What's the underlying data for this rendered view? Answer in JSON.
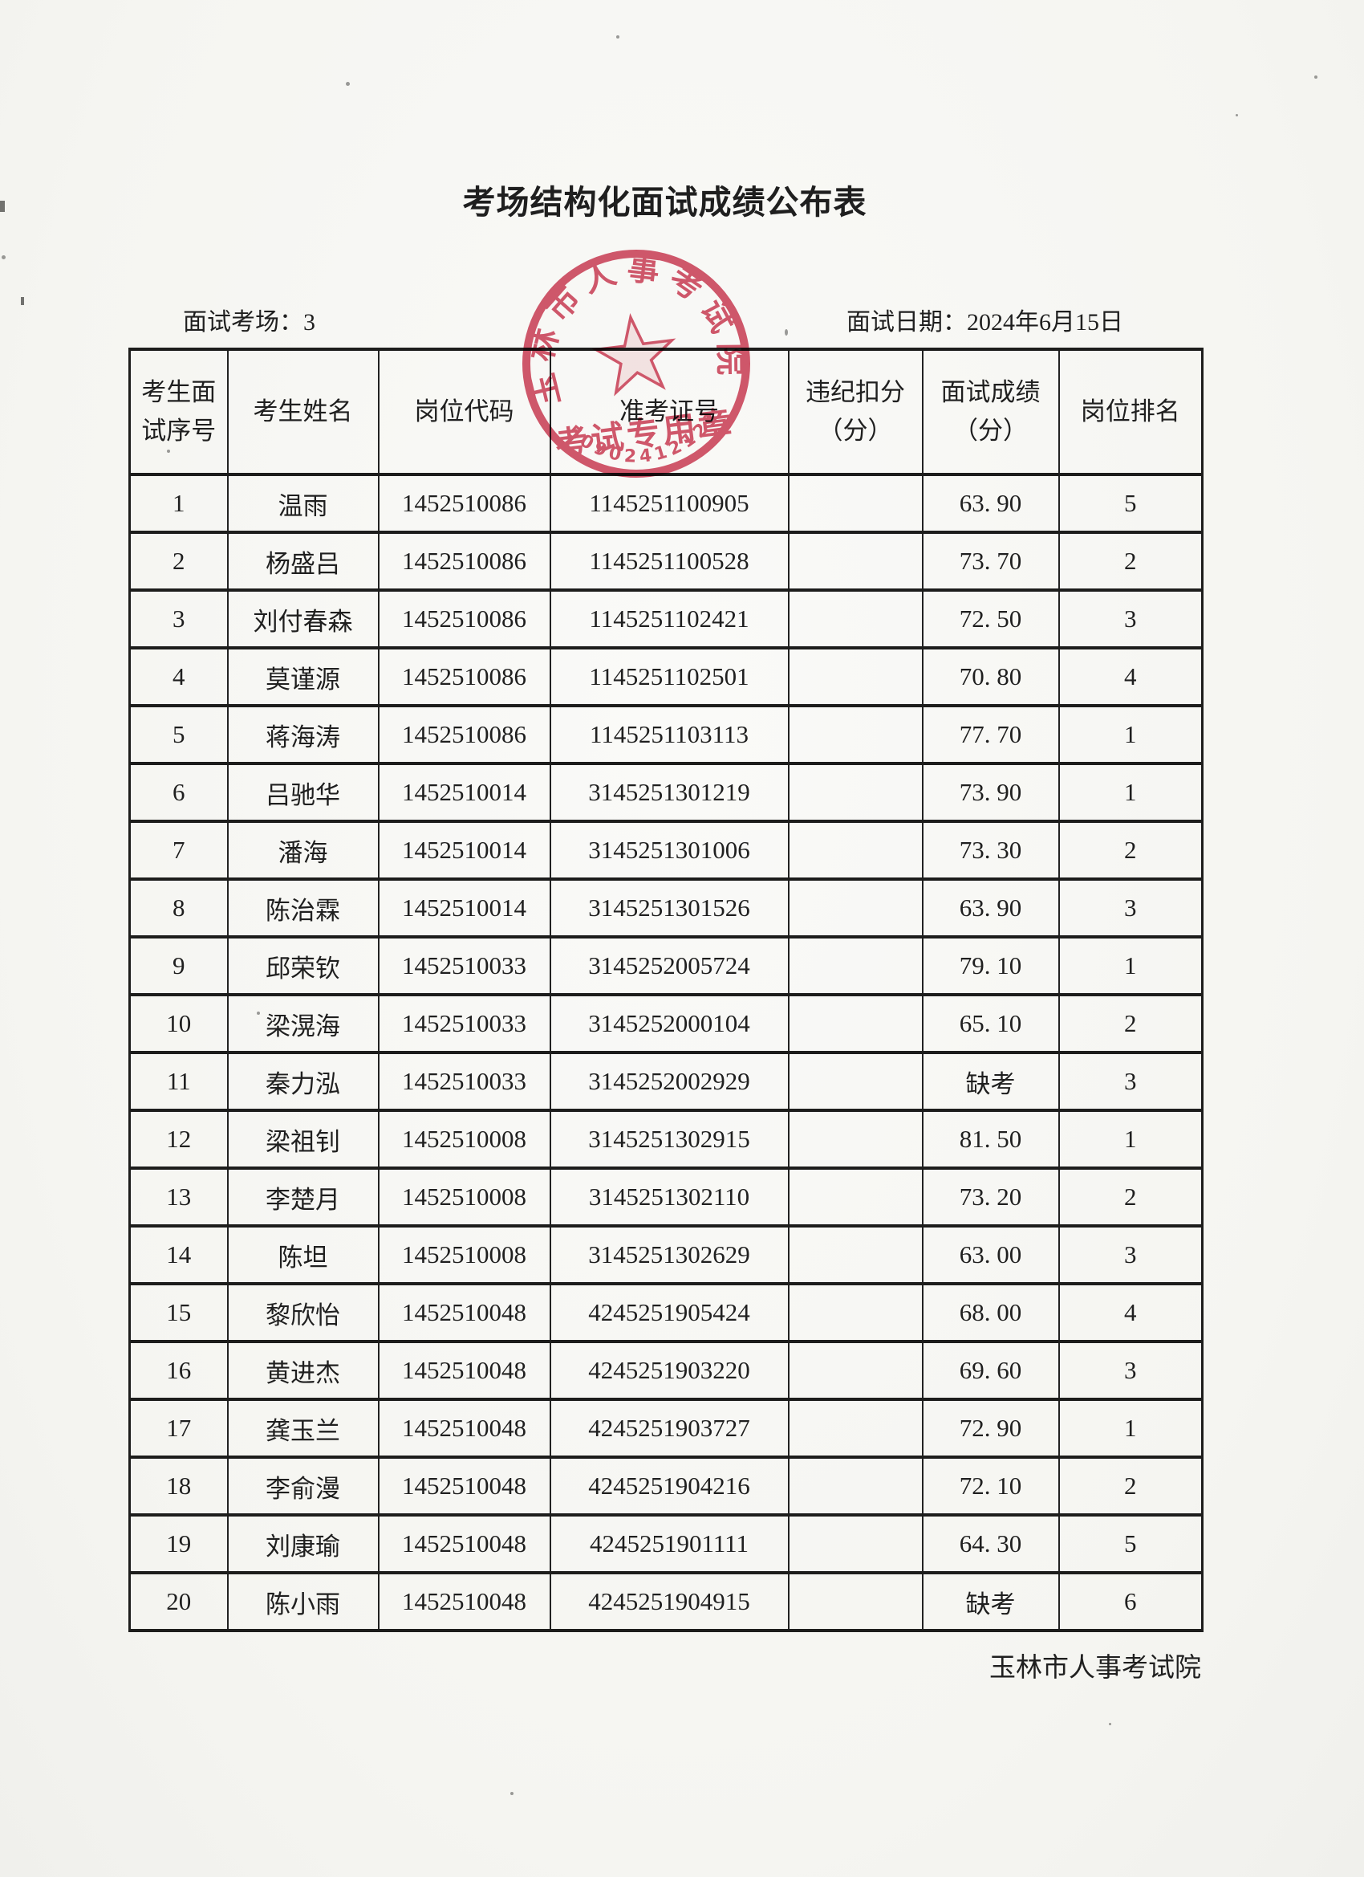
{
  "page": {
    "title": "考场结构化面试成绩公布表",
    "meta": {
      "room_label": "面试考场：3",
      "date_label": "面试日期：2024年6月15日"
    },
    "footer": "玉林市人事考试院"
  },
  "stamp": {
    "arc_text": "玉林市人事考试院",
    "bottom_text": "考试专用章",
    "serial": "4509024121236",
    "color": "#cc3850"
  },
  "table": {
    "headers": [
      "考生面\n试序号",
      "考生姓名",
      "岗位代码",
      "准考证号",
      "违纪扣分\n（分）",
      "面试成绩\n（分）",
      "岗位排名"
    ],
    "rows": [
      [
        "1",
        "温雨",
        "1452510086",
        "1145251100905",
        "",
        "63. 90",
        "5"
      ],
      [
        "2",
        "杨盛吕",
        "1452510086",
        "1145251100528",
        "",
        "73. 70",
        "2"
      ],
      [
        "3",
        "刘付春森",
        "1452510086",
        "1145251102421",
        "",
        "72. 50",
        "3"
      ],
      [
        "4",
        "莫谨源",
        "1452510086",
        "1145251102501",
        "",
        "70. 80",
        "4"
      ],
      [
        "5",
        "蒋海涛",
        "1452510086",
        "1145251103113",
        "",
        "77. 70",
        "1"
      ],
      [
        "6",
        "吕驰华",
        "1452510014",
        "3145251301219",
        "",
        "73. 90",
        "1"
      ],
      [
        "7",
        "潘海",
        "1452510014",
        "3145251301006",
        "",
        "73. 30",
        "2"
      ],
      [
        "8",
        "陈治霖",
        "1452510014",
        "3145251301526",
        "",
        "63. 90",
        "3"
      ],
      [
        "9",
        "邱荣钦",
        "1452510033",
        "3145252005724",
        "",
        "79. 10",
        "1"
      ],
      [
        "10",
        "梁滉海",
        "1452510033",
        "3145252000104",
        "",
        "65. 10",
        "2"
      ],
      [
        "11",
        "秦力泓",
        "1452510033",
        "3145252002929",
        "",
        "缺考",
        "3"
      ],
      [
        "12",
        "梁祖钊",
        "1452510008",
        "3145251302915",
        "",
        "81. 50",
        "1"
      ],
      [
        "13",
        "李楚月",
        "1452510008",
        "3145251302110",
        "",
        "73. 20",
        "2"
      ],
      [
        "14",
        "陈坦",
        "1452510008",
        "3145251302629",
        "",
        "63. 00",
        "3"
      ],
      [
        "15",
        "黎欣怡",
        "1452510048",
        "4245251905424",
        "",
        "68. 00",
        "4"
      ],
      [
        "16",
        "黄进杰",
        "1452510048",
        "4245251903220",
        "",
        "69. 60",
        "3"
      ],
      [
        "17",
        "龚玉兰",
        "1452510048",
        "4245251903727",
        "",
        "72. 90",
        "1"
      ],
      [
        "18",
        "李俞漫",
        "1452510048",
        "4245251904216",
        "",
        "72. 10",
        "2"
      ],
      [
        "19",
        "刘康瑜",
        "1452510048",
        "4245251901111",
        "",
        "64. 30",
        "5"
      ],
      [
        "20",
        "陈小雨",
        "1452510048",
        "4245251904915",
        "",
        "缺考",
        "6"
      ]
    ]
  }
}
